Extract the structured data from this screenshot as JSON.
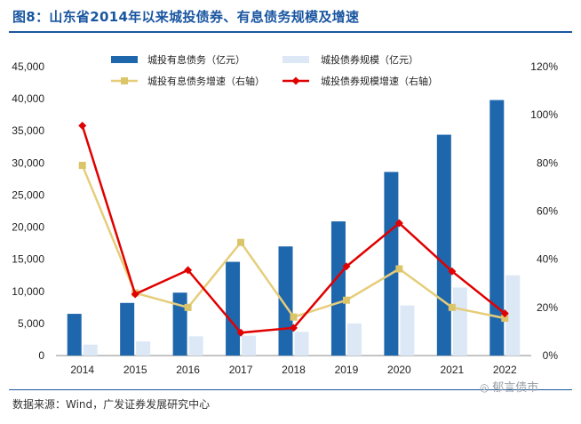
{
  "title": "图8：山东省2014年以来城投债券、有息债务规模及增速",
  "source": "数据来源：Wind，广发证券发展研究中心",
  "watermark": "郁言债市",
  "colors": {
    "title": "#1a56a0",
    "debt_bar": "#1f67ad",
    "bond_bar": "#dce8f5",
    "debt_growth_line": "#e6cd7a",
    "debt_growth_marker": "#dcc46a",
    "bond_growth_line": "#e00000"
  },
  "chart_data": {
    "type": "bar",
    "categories": [
      "2014",
      "2015",
      "2016",
      "2017",
      "2018",
      "2019",
      "2020",
      "2021",
      "2022"
    ],
    "y_left": {
      "ticks": [
        "0",
        "5,000",
        "10,000",
        "15,000",
        "20,000",
        "25,000",
        "30,000",
        "35,000",
        "40,000",
        "45,000"
      ],
      "ylim": [
        0,
        45000
      ]
    },
    "y_right": {
      "ticks": [
        "0%",
        "20%",
        "40%",
        "60%",
        "80%",
        "100%",
        "120%"
      ],
      "ylim": [
        0,
        1.2
      ]
    },
    "series": [
      {
        "name": "城投有息债务（亿元）",
        "type": "bar",
        "axis": "left",
        "values": [
          6500,
          8200,
          9800,
          14600,
          17000,
          20900,
          28600,
          34400,
          39800
        ]
      },
      {
        "name": "城投债券规模（亿元）",
        "type": "bar",
        "axis": "left",
        "values": [
          1700,
          2200,
          3000,
          3100,
          3700,
          5000,
          7800,
          10600,
          12500
        ]
      },
      {
        "name": "城投有息债务增速（右轴）",
        "type": "line",
        "axis": "right",
        "values": [
          0.79,
          0.26,
          0.2,
          0.47,
          0.16,
          0.23,
          0.36,
          0.2,
          0.155
        ]
      },
      {
        "name": "城投债券规模增速（右轴）",
        "type": "line",
        "axis": "right",
        "values": [
          0.955,
          0.255,
          0.355,
          0.095,
          0.115,
          0.37,
          0.55,
          0.35,
          0.175
        ]
      }
    ]
  }
}
